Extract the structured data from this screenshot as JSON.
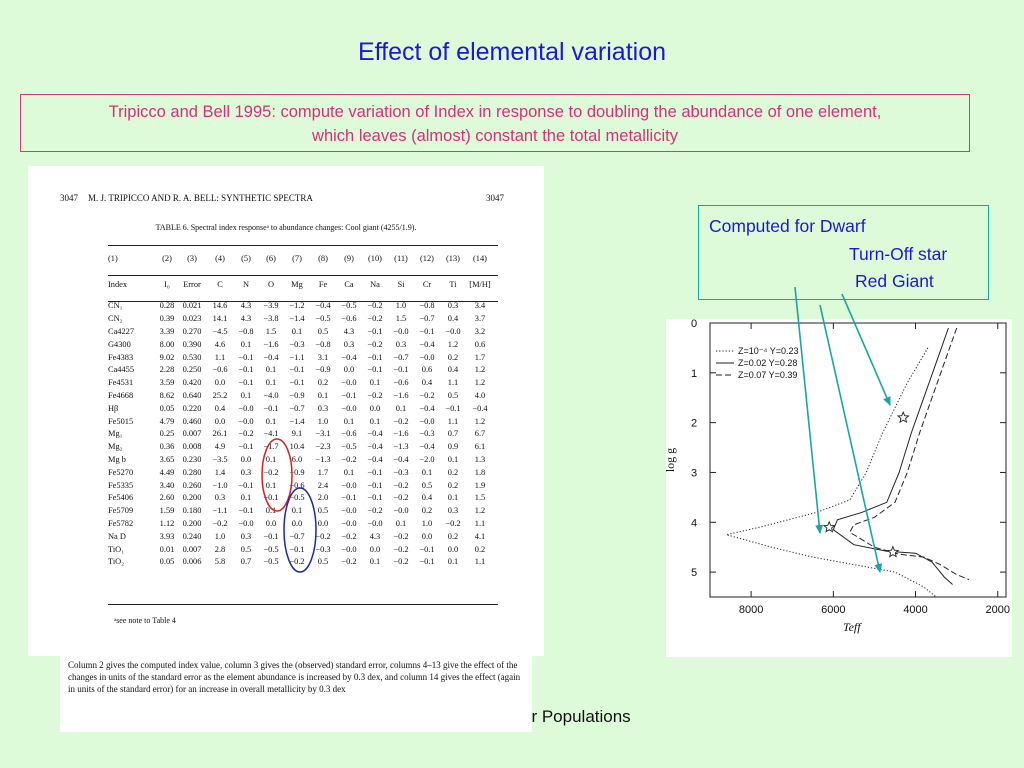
{
  "slide": {
    "title": "Effect of elemental variation",
    "subtitle_line1": "Tripicco and Bell 1995: compute variation of Index in response to doubling the abundance of one element,",
    "subtitle_line2": "which leaves (almost) constant the total metallicity",
    "footer_partial": "ar Populations"
  },
  "scan": {
    "page_left": "3047",
    "running_head": "M. J. TRIPICCO AND R. A. BELL: SYNTHETIC SPECTRA",
    "page_right": "3047",
    "caption": "TABLE 6. Spectral index responseᵃ to abundance changes: Cool giant (4255/1.9).",
    "column_numbers": [
      "(1)",
      "(2)",
      "(3)",
      "(4)",
      "(5)",
      "(6)",
      "(7)",
      "(8)",
      "(9)",
      "(10)",
      "(11)",
      "(12)",
      "(13)",
      "(14)"
    ],
    "column_headers": [
      "Index",
      "I₀",
      "Error",
      "C",
      "N",
      "O",
      "Mg",
      "Fe",
      "Ca",
      "Na",
      "Si",
      "Cr",
      "Ti",
      "[M/H]"
    ],
    "rows": [
      [
        "CN₁",
        "0.28",
        "0.021",
        "14.6",
        "4.3",
        "−3.9",
        "−1.2",
        "−0.4",
        "−0.5",
        "−0.2",
        "1.0",
        "−0.8",
        "0.3",
        "3.4"
      ],
      [
        "CN₂",
        "0.39",
        "0.023",
        "14.1",
        "4.3",
        "−3.8",
        "−1.4",
        "−0.5",
        "−0.6",
        "−0.2",
        "1.5",
        "−0.7",
        "0.4",
        "3.7"
      ],
      [
        "Ca4227",
        "3.39",
        "0.270",
        "−4.5",
        "−0.8",
        "1.5",
        "0.1",
        "0.5",
        "4.3",
        "−0.1",
        "−0.0",
        "−0.1",
        "−0.0",
        "3.2"
      ],
      [
        "G4300",
        "8.00",
        "0.390",
        "4.6",
        "0.1",
        "−1.6",
        "−0.3",
        "−0.8",
        "0.3",
        "−0.2",
        "0.3",
        "−0.4",
        "1.2",
        "0.6"
      ],
      [
        "Fe4383",
        "9.02",
        "0.530",
        "1.1",
        "−0.1",
        "−0.4",
        "−1.1",
        "3.1",
        "−0.4",
        "−0.1",
        "−0.7",
        "−0.0",
        "0.2",
        "1.7"
      ],
      [
        "Ca4455",
        "2.28",
        "0.250",
        "−0.6",
        "−0.1",
        "0.1",
        "−0.1",
        "−0.9",
        "0.0",
        "−0.1",
        "−0.1",
        "0.6",
        "0.4",
        "1.2"
      ],
      [
        "Fe4531",
        "3.59",
        "0.420",
        "0.0",
        "−0.1",
        "0.1",
        "−0.1",
        "0.2",
        "−0.0",
        "0.1",
        "−0.6",
        "0.4",
        "1.1",
        "1.2"
      ],
      [
        "Fe4668",
        "8.62",
        "0.640",
        "25.2",
        "0.1",
        "−4.0",
        "−0.9",
        "0.1",
        "−0.1",
        "−0.2",
        "−1.6",
        "−0.2",
        "0.5",
        "4.0"
      ],
      [
        "Hβ",
        "0.05",
        "0.220",
        "0.4",
        "−0.0",
        "−0.1",
        "−0.7",
        "0.3",
        "−0.0",
        "0.0",
        "0.1",
        "−0.4",
        "−0.1",
        "−0.4"
      ],
      [
        "Fe5015",
        "4.79",
        "0.460",
        "0.0",
        "−0.0",
        "0.1",
        "−1.4",
        "1.0",
        "0.1",
        "0.1",
        "−0.2",
        "−0.0",
        "1.1",
        "1.2"
      ],
      [
        "Mg₁",
        "0.25",
        "0.007",
        "26.1",
        "−0.2",
        "−4.1",
        "9.1",
        "−3.1",
        "−0.6",
        "−0.4",
        "−1.6",
        "−0.3",
        "0.7",
        "6.7"
      ],
      [
        "Mg₂",
        "0.36",
        "0.008",
        "4.9",
        "−0.1",
        "−1.7",
        "10.4",
        "−2.3",
        "−0.5",
        "−0.4",
        "−1.3",
        "−0.4",
        "0.9",
        "6.1"
      ],
      [
        "Mg b",
        "3.65",
        "0.230",
        "−3.5",
        "0.0",
        "0.1",
        "6.0",
        "−1.3",
        "−0.2",
        "−0.4",
        "−0.4",
        "−2.0",
        "0.1",
        "1.3"
      ],
      [
        "Fe5270",
        "4.49",
        "0.280",
        "1.4",
        "0.3",
        "−0.2",
        "−0.9",
        "1.7",
        "0.1",
        "−0.1",
        "−0.3",
        "0.1",
        "0.2",
        "1.8"
      ],
      [
        "Fe5335",
        "3.40",
        "0.260",
        "−1.0",
        "−0.1",
        "0.1",
        "−0.6",
        "2.4",
        "−0.0",
        "−0.1",
        "−0.2",
        "0.5",
        "0.2",
        "1.9"
      ],
      [
        "Fe5406",
        "2.60",
        "0.200",
        "0.3",
        "0.1",
        "−0.1",
        "−0.5",
        "2.0",
        "−0.1",
        "−0.1",
        "−0.2",
        "0.4",
        "0.1",
        "1.5"
      ],
      [
        "Fe5709",
        "1.59",
        "0.180",
        "−1.1",
        "−0.1",
        "0.1",
        "0.1",
        "0.5",
        "−0.0",
        "−0.2",
        "−0.0",
        "0.2",
        "0.3",
        "1.2"
      ],
      [
        "Fe5782",
        "1.12",
        "0.200",
        "−0.2",
        "−0.0",
        "0.0",
        "0.0",
        "0.0",
        "−0.0",
        "−0.0",
        "0.1",
        "1.0",
        "−0.2",
        "1.1"
      ],
      [
        "Na D",
        "3.93",
        "0.240",
        "1.0",
        "0.3",
        "−0.1",
        "−0.7",
        "−0.2",
        "−0.2",
        "4.3",
        "−0.2",
        "0.0",
        "0.2",
        "4.1"
      ],
      [
        "TiO₁",
        "0.01",
        "0.007",
        "2.8",
        "0.5",
        "−0.5",
        "−0.1",
        "−0.3",
        "−0.0",
        "0.0",
        "−0.2",
        "−0.1",
        "0.0",
        "0.2"
      ],
      [
        "TiO₂",
        "0.05",
        "0.006",
        "5.8",
        "0.7",
        "−0.5",
        "−0.2",
        "0.5",
        "−0.2",
        "0.1",
        "−0.2",
        "−0.1",
        "0.1",
        "1.1"
      ]
    ],
    "note_a": "ᵃsee note to Table 4",
    "footnote": "Column 2 gives the computed index value, column 3 gives the (observed) standard error, columns 4–13 give the effect of the changes in units of the standard error as the element abundance is increased by 0.3 dex, and column 14 gives the effect (again in units of the standard error) for an increase in overall metallicity by 0.3 dex"
  },
  "annotation": {
    "line1": "Computed for Dwarf",
    "line2": "Turn-Off star",
    "line3": "Red Giant"
  },
  "colors": {
    "background": "#ddfbd9",
    "title": "#1a1ad6",
    "subtitle": "#d6307a",
    "arrow": "#1aa5a5",
    "circle_mg": "#d42020",
    "circle_fe": "#1a2aa8"
  },
  "chart_data": {
    "type": "line",
    "xlabel": "T_eff",
    "ylabel": "log g",
    "xlim": [
      9000,
      1800
    ],
    "ylim": [
      0,
      5.5
    ],
    "x_ticks": [
      8000,
      6000,
      4000,
      2000
    ],
    "y_ticks": [
      0,
      1,
      2,
      3,
      4,
      5
    ],
    "legend_position": "top-left",
    "series": [
      {
        "name": "Z=10⁻⁴ Y=0.23",
        "style": "dotted",
        "points": [
          [
            3700,
            0.5
          ],
          [
            4200,
            1.2
          ],
          [
            4800,
            2.2
          ],
          [
            5200,
            3.0
          ],
          [
            5600,
            3.55
          ],
          [
            6400,
            3.8
          ],
          [
            7800,
            4.1
          ],
          [
            8600,
            4.25
          ],
          [
            7500,
            4.5
          ],
          [
            6500,
            4.7
          ],
          [
            5500,
            4.85
          ],
          [
            4500,
            5.0
          ],
          [
            3800,
            5.3
          ],
          [
            3500,
            5.5
          ]
        ]
      },
      {
        "name": "Z=0.02 Y=0.28",
        "style": "solid",
        "points": [
          [
            3200,
            0.1
          ],
          [
            3500,
            0.8
          ],
          [
            3800,
            1.5
          ],
          [
            4100,
            2.2
          ],
          [
            4400,
            3.0
          ],
          [
            4700,
            3.6
          ],
          [
            5300,
            3.8
          ],
          [
            5900,
            3.95
          ],
          [
            6000,
            4.15
          ],
          [
            5500,
            4.45
          ],
          [
            4700,
            4.58
          ],
          [
            4000,
            4.62
          ],
          [
            3600,
            4.8
          ],
          [
            3300,
            5.1
          ],
          [
            3100,
            5.25
          ]
        ]
      },
      {
        "name": "Z=0.07 Y=0.39",
        "style": "dashed",
        "points": [
          [
            3000,
            0.1
          ],
          [
            3300,
            0.8
          ],
          [
            3600,
            1.5
          ],
          [
            3900,
            2.2
          ],
          [
            4200,
            3.0
          ],
          [
            4500,
            3.6
          ],
          [
            5000,
            3.9
          ],
          [
            5500,
            4.05
          ],
          [
            5600,
            4.2
          ],
          [
            5000,
            4.5
          ],
          [
            4400,
            4.64
          ],
          [
            3800,
            4.7
          ],
          [
            3400,
            4.85
          ],
          [
            3000,
            5.05
          ],
          [
            2700,
            5.15
          ]
        ]
      }
    ],
    "markers": [
      {
        "x": 4300,
        "y": 1.9,
        "symbol": "star"
      },
      {
        "x": 6100,
        "y": 4.1,
        "symbol": "star"
      },
      {
        "x": 4550,
        "y": 4.6,
        "symbol": "star"
      }
    ]
  }
}
